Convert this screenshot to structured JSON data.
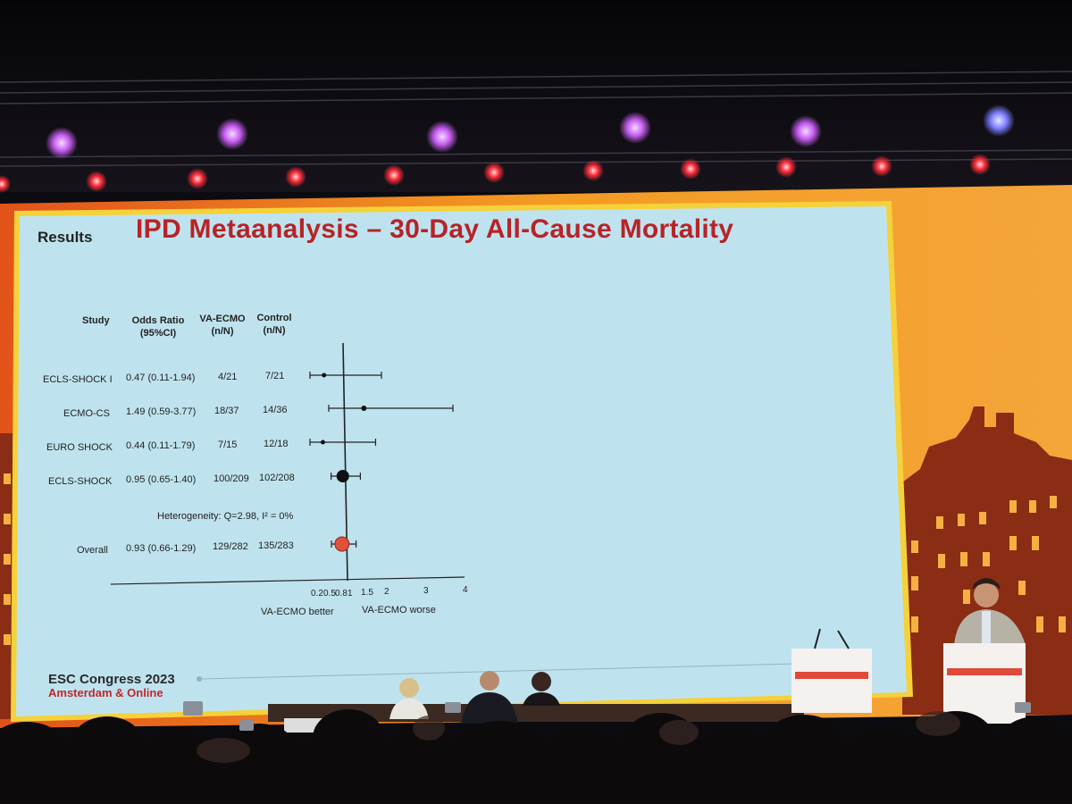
{
  "slide": {
    "section_label": "Results",
    "title": "IPD Metaanalysis – 30-Day All-Cause Mortality",
    "columns": {
      "study": "Study",
      "odds_ratio": [
        "Odds Ratio",
        "(95%CI)"
      ],
      "va_ecmo": [
        "VA-ECMO",
        "(n/N)"
      ],
      "control": [
        "Control",
        "(n/N)"
      ]
    },
    "rows": [
      {
        "study": "ECLS-SHOCK I",
        "or_text": "0.47 (0.11-1.94)",
        "va_ecmo": "4/21",
        "control": "7/21"
      },
      {
        "study": "ECMO-CS",
        "or_text": "1.49 (0.59-3.77)",
        "va_ecmo": "18/37",
        "control": "14/36"
      },
      {
        "study": "EURO SHOCK",
        "or_text": "0.44 (0.11-1.79)",
        "va_ecmo": "7/15",
        "control": "12/18"
      },
      {
        "study": "ECLS-SHOCK",
        "or_text": "0.95 (0.65-1.40)",
        "va_ecmo": "100/209",
        "control": "102/208"
      }
    ],
    "heterogeneity": "Heterogeneity: Q=2.98, I² = 0%",
    "overall": {
      "study": "Overall",
      "or_text": "0.93 (0.66-1.29)",
      "va_ecmo": "129/282",
      "control": "135/283"
    },
    "axis_ticks": [
      "0.2",
      "0.5",
      "0.8",
      "1",
      "1.5",
      "2",
      "3",
      "4"
    ],
    "direction_left": "VA-ECMO better",
    "direction_right": "VA-ECMO worse",
    "footer_title": "ESC Congress 2023",
    "footer_subtitle": "Amsterdam & Online"
  },
  "chart_data": {
    "type": "scatter",
    "x_axis": "odds ratio",
    "reference_line": 1,
    "xlim": [
      0.2,
      4
    ],
    "points": [
      {
        "study": "ECLS-SHOCK I",
        "or": 0.47,
        "lo": 0.11,
        "hi": 1.94
      },
      {
        "study": "ECMO-CS",
        "or": 1.49,
        "lo": 0.59,
        "hi": 3.77
      },
      {
        "study": "EURO SHOCK",
        "or": 0.44,
        "lo": 0.11,
        "hi": 1.79
      },
      {
        "study": "ECLS-SHOCK",
        "or": 0.95,
        "lo": 0.65,
        "hi": 1.4
      },
      {
        "study": "Overall",
        "or": 0.93,
        "lo": 0.66,
        "hi": 1.29
      }
    ]
  },
  "colors": {
    "slide_bg": "#bfe3ee",
    "title_red": "#b72327",
    "stage_orange": "#f08a1e",
    "overall_marker": "#e0503a"
  }
}
